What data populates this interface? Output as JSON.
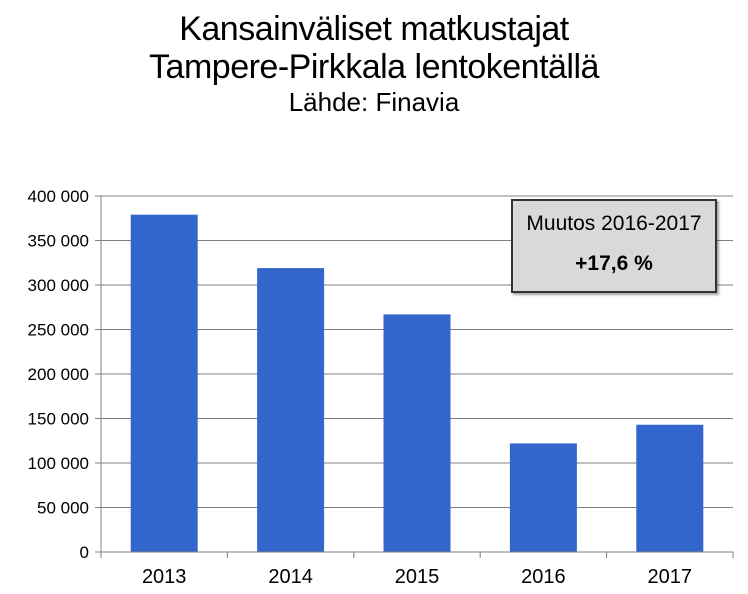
{
  "chart_data": {
    "type": "bar",
    "title": "Kansainväliset matkustajat",
    "title_line2": "Tampere-Pirkkala lentokentällä",
    "subtitle": "Lähde: Finavia",
    "categories": [
      "2013",
      "2014",
      "2015",
      "2016",
      "2017"
    ],
    "values": [
      379000,
      319000,
      267000,
      122000,
      143000
    ],
    "y_ticks": [
      "0",
      "50 000",
      "100 000",
      "150 000",
      "200 000",
      "250 000",
      "300 000",
      "350 000",
      "400 000"
    ],
    "ylim": [
      0,
      400000
    ],
    "y_step": 50000,
    "grid": true,
    "bar_color": "#3366cc",
    "annotation": {
      "line1": "Muutos 2016-2017",
      "line2": "+17,6 %"
    }
  }
}
